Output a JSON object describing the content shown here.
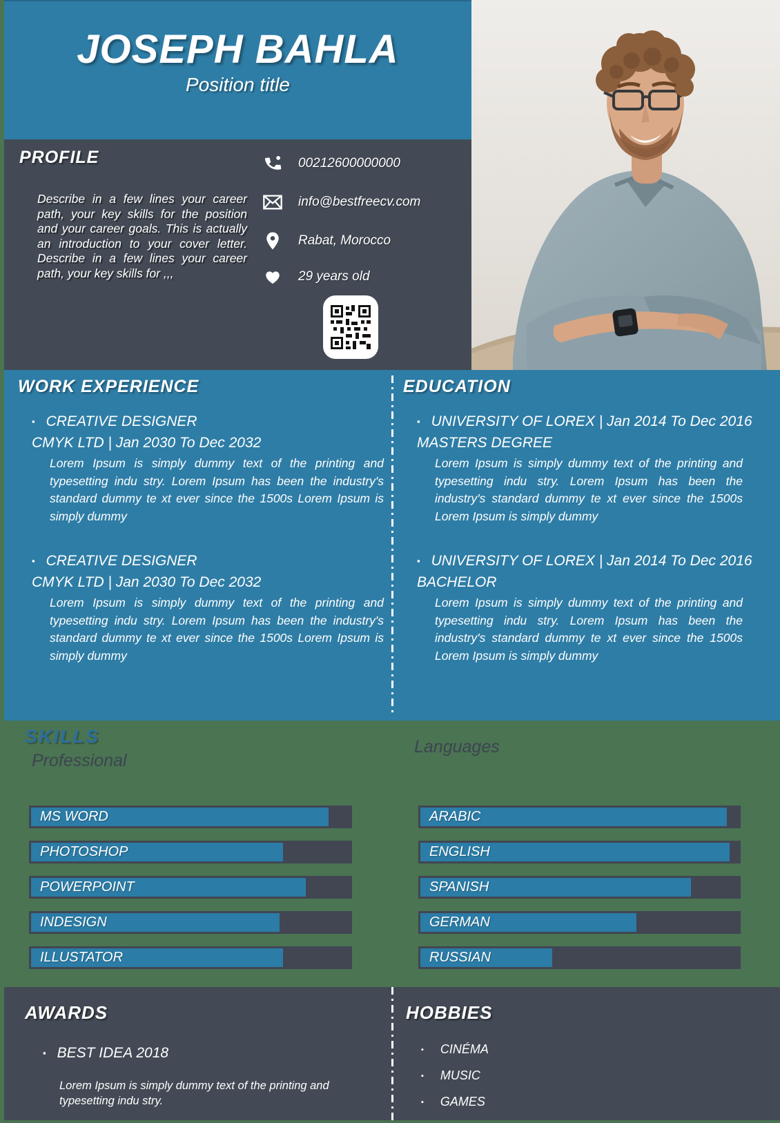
{
  "header": {
    "name": "JOSEPH BAHLA",
    "position": "Position title"
  },
  "profile": {
    "title": "PROFILE",
    "text": "Describe in a few lines your career path, your key skills for the position and your career goals. This is actually an introduction to your cover letter. Describe in a few lines your career path, your key skills for ,,,"
  },
  "contact": {
    "rows": [
      {
        "icon": "phone-icon",
        "value": "00212600000000"
      },
      {
        "icon": "email-icon",
        "value": "info@bestfreecv.com"
      },
      {
        "icon": "location-icon",
        "value": "Rabat, Morocco"
      },
      {
        "icon": "heart-icon",
        "value": "29 years old"
      }
    ],
    "qr": "qr-code"
  },
  "work_experience": {
    "title": "WORK EXPERIENCE",
    "items": [
      {
        "role": "CREATIVE DESIGNER",
        "company_line": "CMYK LTD | Jan 2030 To Dec 2032",
        "description": "Lorem Ipsum is simply dummy text of the printing and typesetting indu stry. Lorem Ipsum has been the industry's standard dummy te xt ever since the 1500s Lorem Ipsum is simply dummy"
      },
      {
        "role": "CREATIVE DESIGNER",
        "company_line": "CMYK LTD | Jan 2030 To Dec 2032",
        "description": "Lorem Ipsum is simply dummy text of the printing and typesetting indu stry. Lorem Ipsum has been the industry's standard dummy te xt ever since the 1500s Lorem Ipsum is simply dummy"
      }
    ]
  },
  "education": {
    "title": "EDUCATION",
    "items": [
      {
        "school_line": "UNIVERSITY OF LOREX | Jan 2014 To Dec 2016",
        "degree": "MASTERS DEGREE",
        "description": "Lorem Ipsum is simply dummy text of the printing and typesetting indu stry. Lorem Ipsum has been the industry's standard dummy te xt ever since the 1500s Lorem Ipsum is simply dummy"
      },
      {
        "school_line": "UNIVERSITY OF LOREX | Jan 2014 To Dec 2016",
        "degree": "BACHELOR",
        "description": "Lorem Ipsum is simply dummy text of the printing and typesetting indu stry. Lorem Ipsum has been the industry's standard dummy te xt ever since the 1500s Lorem Ipsum is simply dummy"
      }
    ]
  },
  "skills": {
    "title": "SKILLS",
    "professional": {
      "label": "Professional",
      "items": [
        {
          "name": "MS WORD",
          "percent": 92
        },
        {
          "name": "PHOTOSHOP",
          "percent": 78
        },
        {
          "name": "POWERPOINT",
          "percent": 85
        },
        {
          "name": "INDESIGN",
          "percent": 77
        },
        {
          "name": "ILLUSTATOR",
          "percent": 78
        }
      ]
    },
    "languages": {
      "label": "Languages",
      "items": [
        {
          "name": "ARABIC",
          "percent": 95
        },
        {
          "name": "ENGLISH",
          "percent": 96
        },
        {
          "name": "SPANISH",
          "percent": 84
        },
        {
          "name": "GERMAN",
          "percent": 67
        },
        {
          "name": "RUSSIAN",
          "percent": 41
        }
      ]
    }
  },
  "awards": {
    "title": "AWARDS",
    "items": [
      {
        "name": "BEST IDEA 2018",
        "description": "Lorem Ipsum is simply dummy text of the printing and typesetting indu stry."
      }
    ]
  },
  "hobbies": {
    "title": "HOBBIES",
    "items": [
      {
        "name": "CINÉMA"
      },
      {
        "name": "MUSIC"
      },
      {
        "name": "GAMES"
      }
    ]
  },
  "colors": {
    "accent_blue": "#2e7da6",
    "slate": "#434a55",
    "green": "#4a7452",
    "bar_track": "#414652",
    "bar_fill": "#2b7ca6",
    "skills_title_blue": "#2c6f9b"
  }
}
